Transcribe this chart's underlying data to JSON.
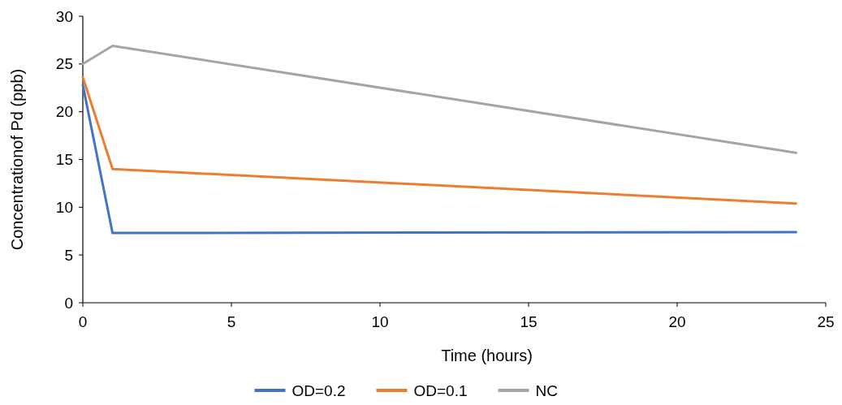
{
  "chart_data": {
    "type": "line",
    "xlabel": "Time (hours)",
    "ylabel": "Concentrationof Pd (ppb)",
    "xlim": [
      0,
      25
    ],
    "xticks": [
      0,
      5,
      10,
      15,
      20,
      25
    ],
    "ylim": [
      0,
      30
    ],
    "yticks": [
      0,
      5,
      10,
      15,
      20,
      25,
      30
    ],
    "grid": false,
    "legend": "bottom",
    "marker": "none",
    "line_style": "solid",
    "series": [
      {
        "name": "OD=0.2",
        "color": "#4472c4",
        "x": [
          0,
          1,
          24
        ],
        "values": [
          22.8,
          7.3,
          7.4
        ]
      },
      {
        "name": "OD=0.1",
        "color": "#ed7d31",
        "x": [
          0,
          1,
          24
        ],
        "values": [
          23.6,
          14.0,
          10.4
        ]
      },
      {
        "name": "NC",
        "color": "#a5a5a5",
        "x": [
          0,
          1,
          24
        ],
        "values": [
          25.0,
          26.9,
          15.7
        ]
      }
    ]
  }
}
